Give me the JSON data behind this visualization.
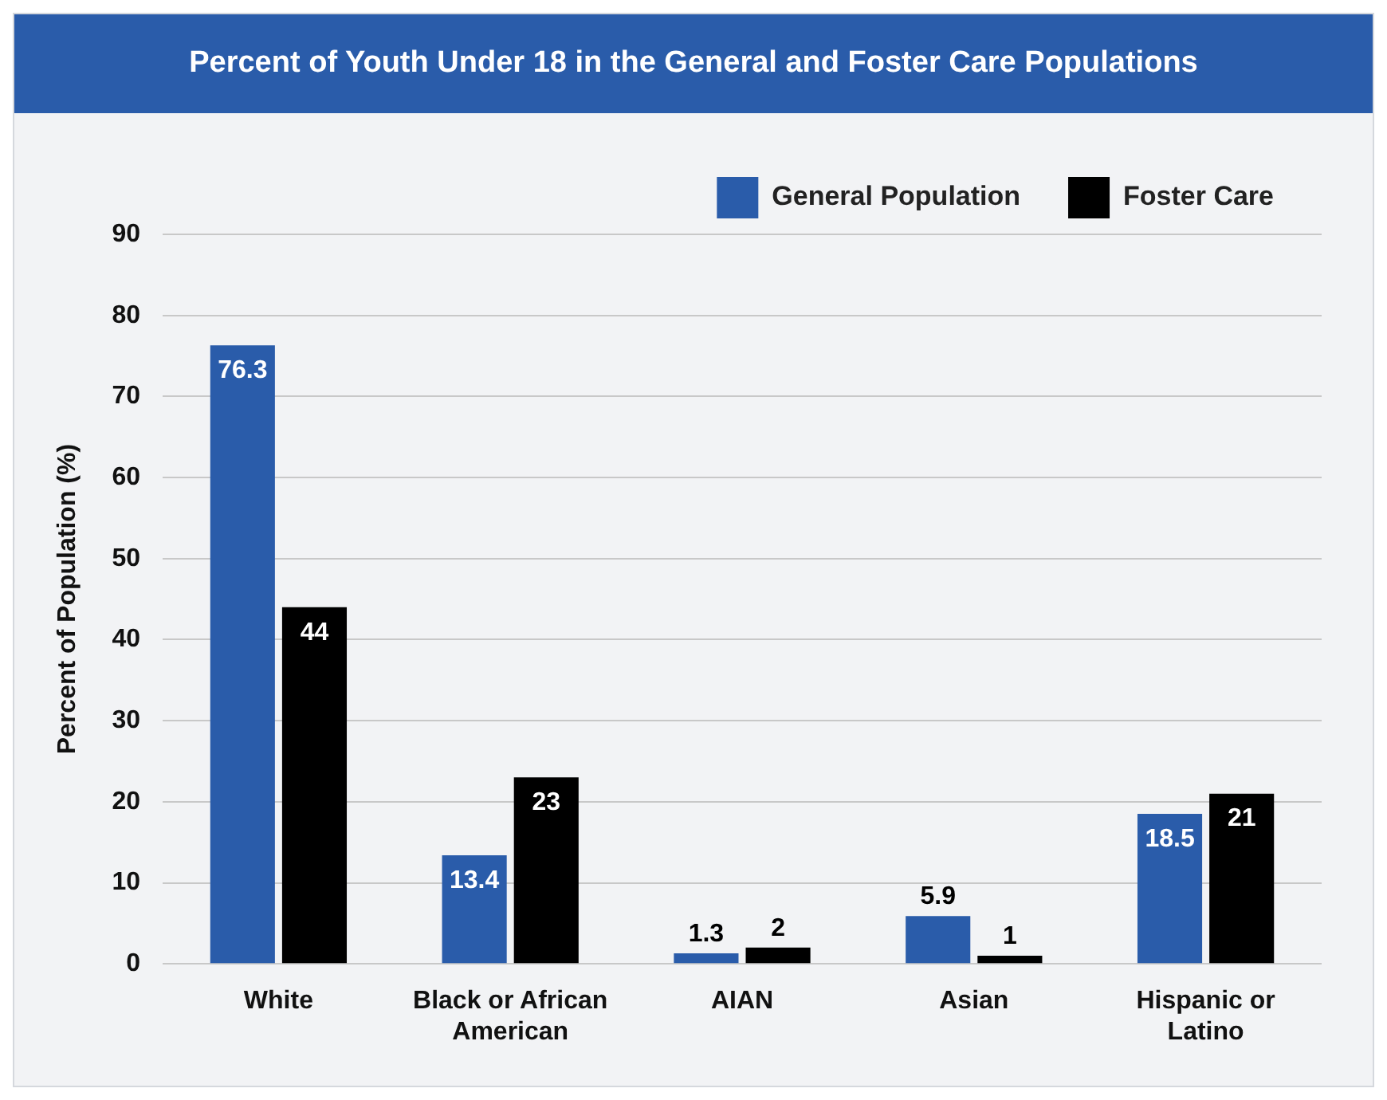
{
  "chart_data": {
    "type": "bar",
    "title": "Percent of Youth Under 18 in the General and Foster Care Populations",
    "ylabel": "Percent of Population (%)",
    "categories": [
      "White",
      "Black or African American",
      "AIAN",
      "Asian",
      "Hispanic or Latino"
    ],
    "series": [
      {
        "name": "General Population",
        "color": "#2a5caa",
        "values": [
          76.3,
          13.4,
          1.3,
          5.9,
          18.5
        ]
      },
      {
        "name": "Foster Care",
        "color": "#000000",
        "values": [
          44,
          23,
          2,
          1,
          21
        ]
      }
    ],
    "ylim": [
      0,
      90
    ],
    "yticks": [
      0,
      10,
      20,
      30,
      40,
      50,
      60,
      70,
      80,
      90
    ],
    "grid": "y",
    "legend": "top right",
    "data_labels": true
  }
}
